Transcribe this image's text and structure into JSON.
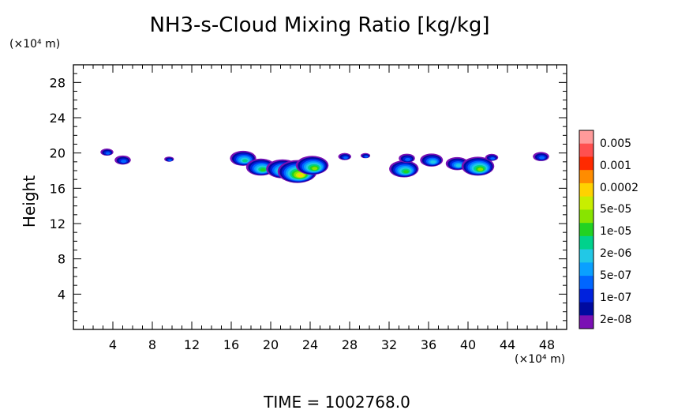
{
  "chart_data": {
    "type": "heatmap",
    "title": "NH3-s-Cloud Mixing Ratio [kg/kg]",
    "ylabel": "Height",
    "y_unit": "(×10⁴ m)",
    "x_unit": "(×10⁴ m)",
    "xlim": [
      0,
      50
    ],
    "ylim": [
      0,
      30
    ],
    "x_ticks": [
      4,
      8,
      12,
      16,
      20,
      24,
      28,
      32,
      36,
      40,
      44,
      48
    ],
    "x_tick_labels": [
      "4",
      "8",
      "12",
      "16",
      "20",
      "24",
      "28",
      "32",
      "36",
      "40",
      "44",
      "48"
    ],
    "y_ticks": [
      4,
      8,
      12,
      16,
      20,
      24,
      28
    ],
    "y_tick_labels": [
      "4",
      "8",
      "12",
      "16",
      "20",
      "24",
      "28"
    ],
    "grid": false,
    "legend_position": "right",
    "colorbar": {
      "labels": [
        "0.005",
        "0.001",
        "0.0002",
        "5e-05",
        "1e-05",
        "2e-06",
        "5e-07",
        "1e-07",
        "2e-08"
      ],
      "colors": [
        "#ff9a9a",
        "#ff5050",
        "#ff2a00",
        "#ff8c00",
        "#ffd200",
        "#c8ee00",
        "#88e400",
        "#22d222",
        "#00d28c",
        "#22c8e6",
        "#0aa0ff",
        "#0066ff",
        "#0022dd",
        "#000aa0",
        "#7a10b4"
      ]
    },
    "cloud_patches": [
      {
        "x": 3.4,
        "y": 20.1,
        "level": 2
      },
      {
        "x": 5.0,
        "y": 19.2,
        "level": 3
      },
      {
        "x": 9.7,
        "y": 19.3,
        "level": 1
      },
      {
        "x": 17.2,
        "y": 19.4,
        "level": 6
      },
      {
        "x": 19.0,
        "y": 18.4,
        "level": 7
      },
      {
        "x": 21.2,
        "y": 18.2,
        "level": 8
      },
      {
        "x": 22.7,
        "y": 17.9,
        "level": 10
      },
      {
        "x": 24.2,
        "y": 18.6,
        "level": 8
      },
      {
        "x": 27.5,
        "y": 19.6,
        "level": 2
      },
      {
        "x": 29.6,
        "y": 19.7,
        "level": 1
      },
      {
        "x": 33.5,
        "y": 18.2,
        "level": 7
      },
      {
        "x": 33.8,
        "y": 19.4,
        "level": 3
      },
      {
        "x": 36.3,
        "y": 19.2,
        "level": 5
      },
      {
        "x": 38.9,
        "y": 18.8,
        "level": 5
      },
      {
        "x": 41.0,
        "y": 18.5,
        "level": 8
      },
      {
        "x": 42.4,
        "y": 19.5,
        "level": 2
      },
      {
        "x": 47.4,
        "y": 19.6,
        "level": 3
      }
    ]
  },
  "footer": {
    "time_label": "TIME = 1002768.0"
  }
}
